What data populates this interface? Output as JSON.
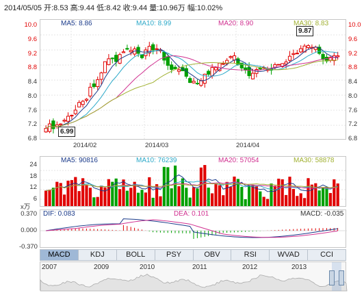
{
  "header": {
    "quote": "2014/05/05 开:8.53 高:9.44 低:8.42 收:9.44 量:10.96万 幅:10.02%"
  },
  "kline": {
    "ma5": "MA5: 8.86",
    "ma10": "MA10: 8.99",
    "ma20": "MA20: 8.90",
    "ma30": "MA30: 8.83",
    "yticks": [
      "10.0",
      "9.6",
      "9.2",
      "8.8",
      "8.4",
      "8.0",
      "7.6",
      "7.2",
      "6.8"
    ],
    "xticks": [
      "2014/02",
      "2014/03",
      "2014/04"
    ],
    "low_label": "6.99",
    "high_label": "9.87"
  },
  "volume": {
    "ma5": "MA5: 90816",
    "ma10": "MA10: 76239",
    "ma20": "MA20: 57054",
    "ma30": "MA30: 58878",
    "yticks": [
      "24",
      "18",
      "12",
      "6"
    ],
    "unit": "x万"
  },
  "macd": {
    "dif": "DIF: 0.083",
    "dea": "DEA: 0.101",
    "macd": "MACD: -0.035",
    "yticks": [
      "0.370",
      "0.000",
      "-0.370"
    ]
  },
  "tabs": [
    "MACD",
    "KDJ",
    "BOLL",
    "PSY",
    "OBV",
    "RSI",
    "WVAD",
    "CCI"
  ],
  "timeline": {
    "years": [
      "2007",
      "2009",
      "2010",
      "2011",
      "2012",
      "2013"
    ]
  },
  "colors": {
    "up": "#e00000",
    "down": "#00a000",
    "ma5": "#1a3a8a",
    "ma10": "#2aa8c8",
    "ma20": "#d03090",
    "ma30": "#a0b030"
  }
}
